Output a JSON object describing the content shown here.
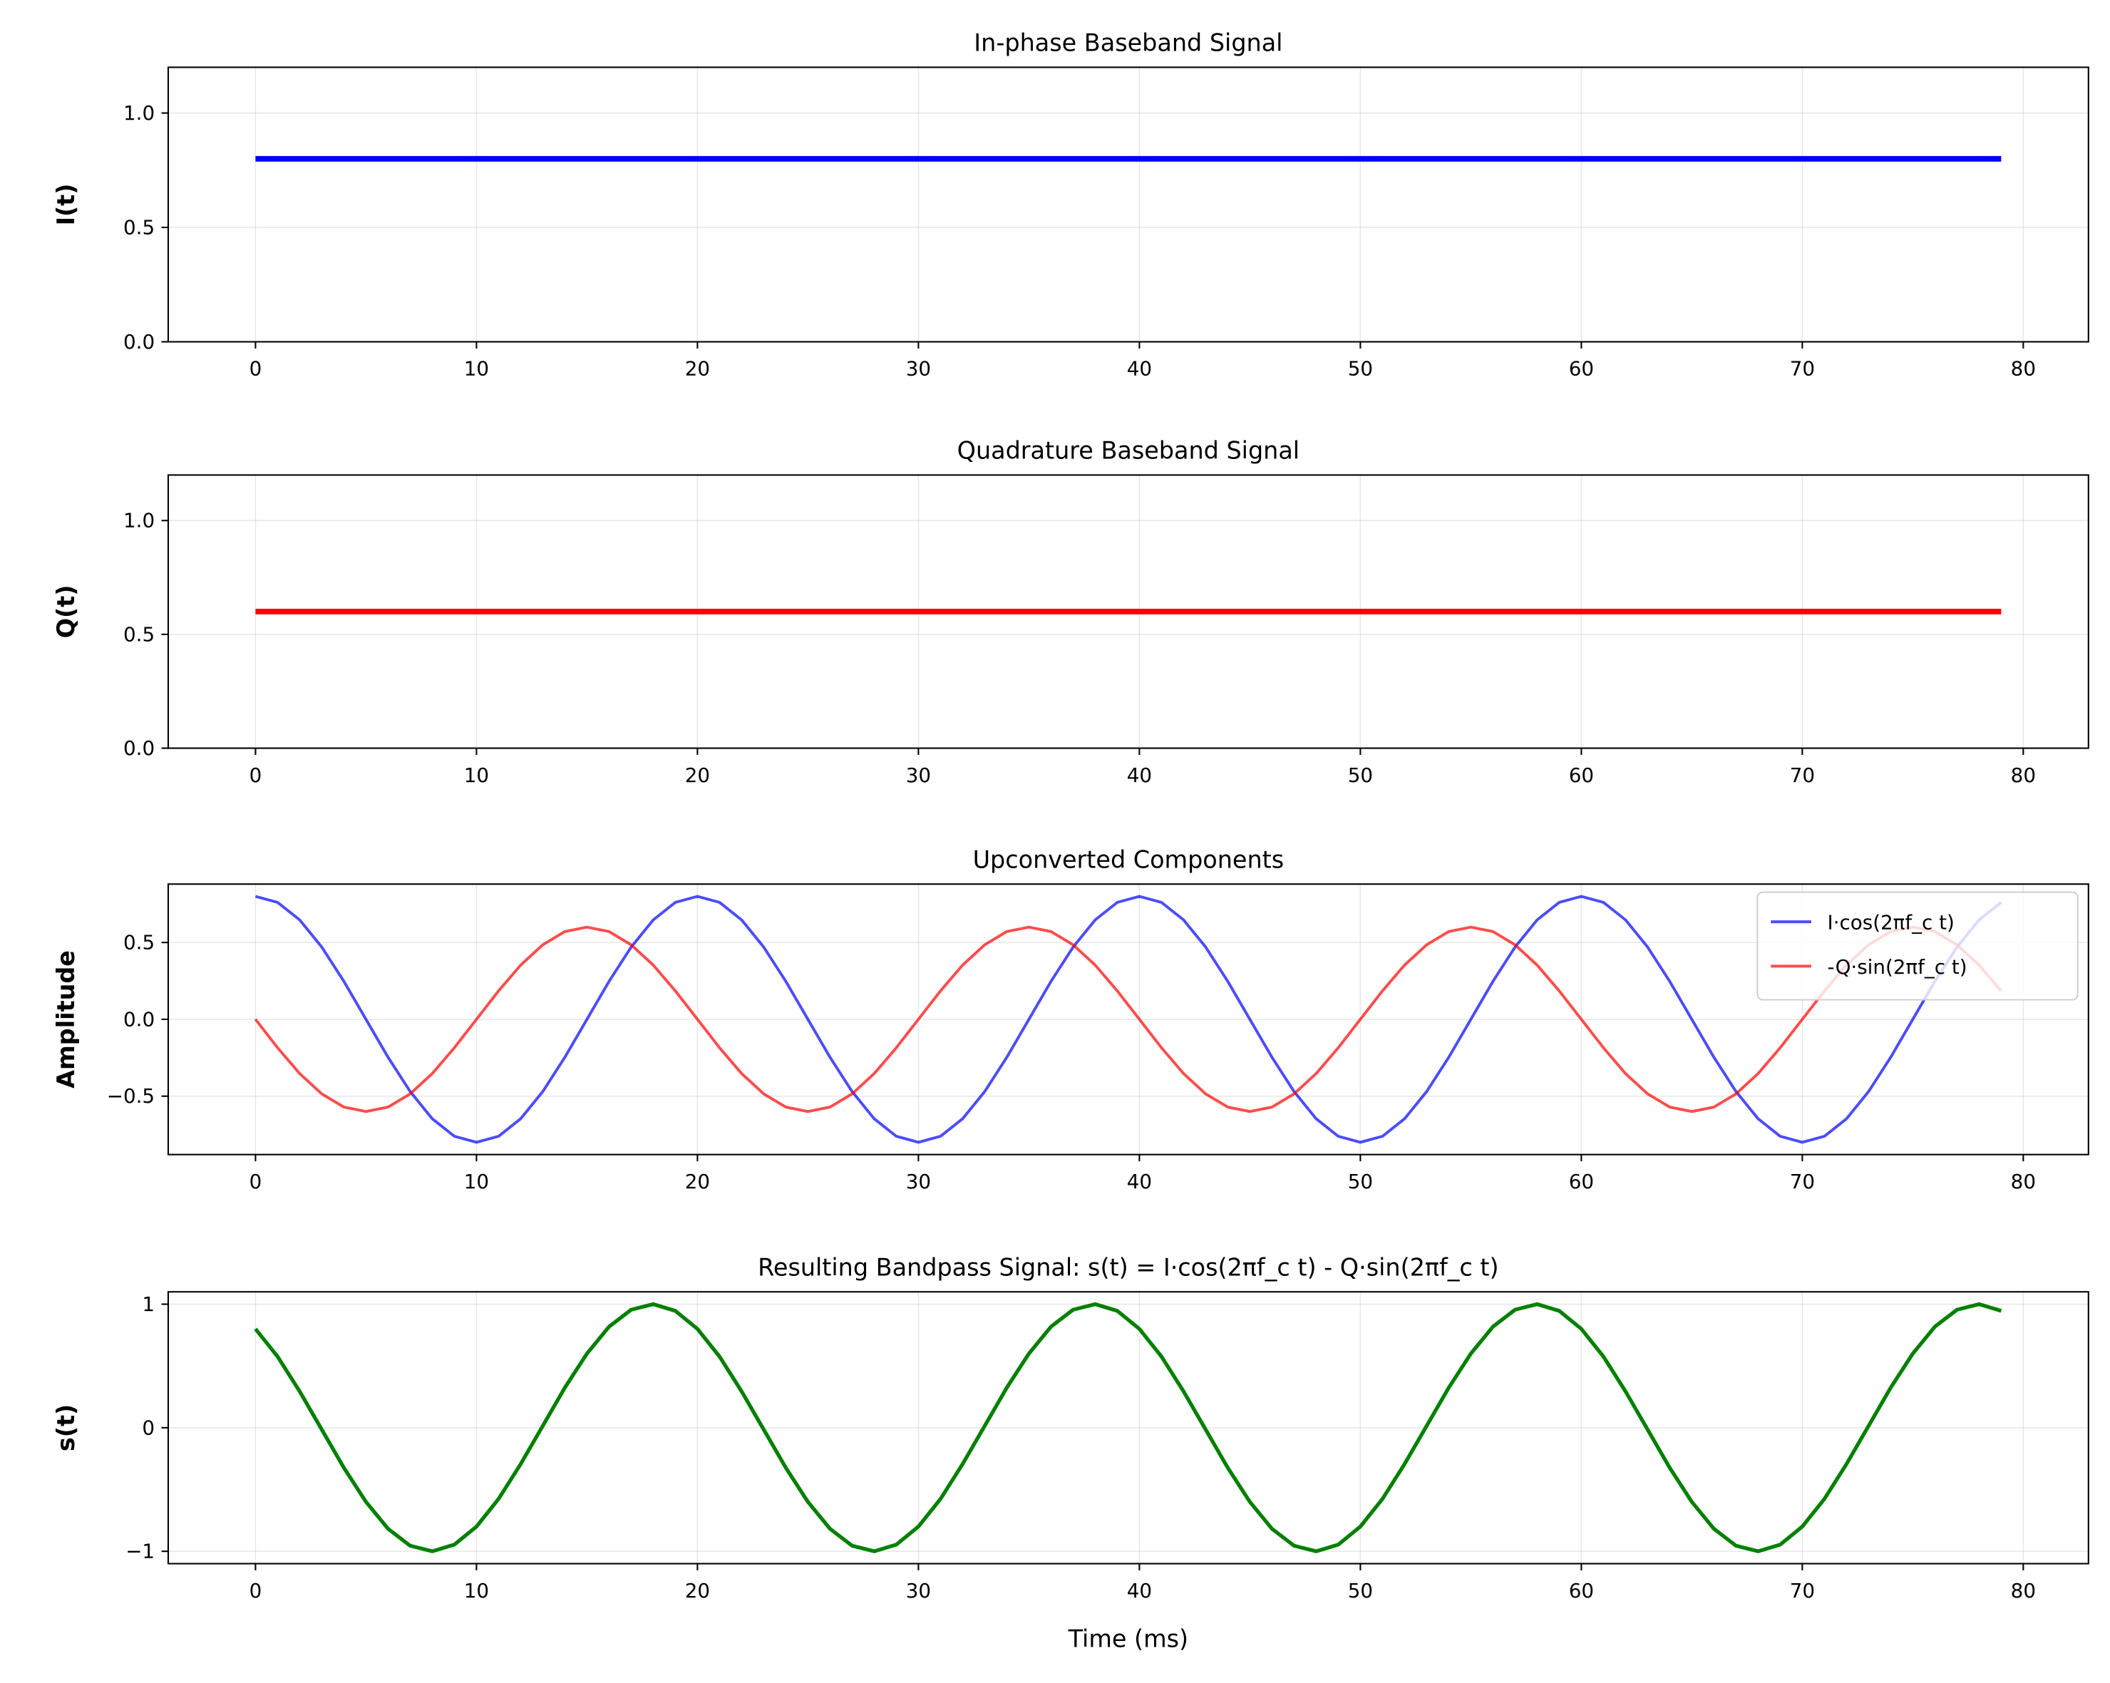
{
  "chart_data": [
    {
      "type": "line",
      "title": "In-phase Baseband Signal",
      "xlabel": "",
      "ylabel": "I(t)",
      "xlim": [
        -3.95,
        82.95
      ],
      "ylim": [
        0,
        1.2
      ],
      "xticks": [
        0,
        10,
        20,
        30,
        40,
        50,
        60,
        70,
        80
      ],
      "xtick_labels": [
        "0",
        "10",
        "20",
        "30",
        "40",
        "50",
        "60",
        "70",
        "80"
      ],
      "yticks": [
        0,
        0.5,
        1.0
      ],
      "ytick_labels": [
        "0.0",
        "0.5",
        "1.0"
      ],
      "grid": true,
      "series": [
        {
          "color": "#0000ff",
          "width": 3,
          "opacity": 1,
          "x_start": 0,
          "x_end": 79,
          "values": [
            0.8,
            0.8,
            0.8,
            0.8,
            0.8,
            0.8,
            0.8,
            0.8,
            0.8,
            0.8,
            0.8,
            0.8,
            0.8,
            0.8,
            0.8,
            0.8,
            0.8,
            0.8,
            0.8,
            0.8,
            0.8,
            0.8,
            0.8,
            0.8,
            0.8,
            0.8,
            0.8,
            0.8,
            0.8,
            0.8,
            0.8,
            0.8,
            0.8,
            0.8,
            0.8,
            0.8,
            0.8,
            0.8,
            0.8,
            0.8,
            0.8,
            0.8,
            0.8,
            0.8,
            0.8,
            0.8,
            0.8,
            0.8,
            0.8,
            0.8,
            0.8,
            0.8,
            0.8,
            0.8,
            0.8,
            0.8,
            0.8,
            0.8,
            0.8,
            0.8,
            0.8,
            0.8,
            0.8,
            0.8,
            0.8,
            0.8,
            0.8,
            0.8,
            0.8,
            0.8,
            0.8,
            0.8,
            0.8,
            0.8,
            0.8,
            0.8,
            0.8,
            0.8,
            0.8,
            0.8
          ]
        }
      ]
    },
    {
      "type": "line",
      "title": "Quadrature Baseband Signal",
      "xlabel": "",
      "ylabel": "Q(t)",
      "xlim": [
        -3.95,
        82.95
      ],
      "ylim": [
        0,
        1.2
      ],
      "xticks": [
        0,
        10,
        20,
        30,
        40,
        50,
        60,
        70,
        80
      ],
      "xtick_labels": [
        "0",
        "10",
        "20",
        "30",
        "40",
        "50",
        "60",
        "70",
        "80"
      ],
      "yticks": [
        0,
        0.5,
        1.0
      ],
      "ytick_labels": [
        "0.0",
        "0.5",
        "1.0"
      ],
      "grid": true,
      "series": [
        {
          "color": "#ff0000",
          "width": 3,
          "opacity": 1,
          "x_start": 0,
          "x_end": 79,
          "values": [
            0.6,
            0.6,
            0.6,
            0.6,
            0.6,
            0.6,
            0.6,
            0.6,
            0.6,
            0.6,
            0.6,
            0.6,
            0.6,
            0.6,
            0.6,
            0.6,
            0.6,
            0.6,
            0.6,
            0.6,
            0.6,
            0.6,
            0.6,
            0.6,
            0.6,
            0.6,
            0.6,
            0.6,
            0.6,
            0.6,
            0.6,
            0.6,
            0.6,
            0.6,
            0.6,
            0.6,
            0.6,
            0.6,
            0.6,
            0.6,
            0.6,
            0.6,
            0.6,
            0.6,
            0.6,
            0.6,
            0.6,
            0.6,
            0.6,
            0.6,
            0.6,
            0.6,
            0.6,
            0.6,
            0.6,
            0.6,
            0.6,
            0.6,
            0.6,
            0.6,
            0.6,
            0.6,
            0.6,
            0.6,
            0.6,
            0.6,
            0.6,
            0.6,
            0.6,
            0.6,
            0.6,
            0.6,
            0.6,
            0.6,
            0.6,
            0.6,
            0.6,
            0.6,
            0.6,
            0.6
          ]
        }
      ]
    },
    {
      "type": "line",
      "title": "Upconverted Components",
      "xlabel": "",
      "ylabel": "Amplitude",
      "xlim": [
        -3.95,
        82.95
      ],
      "ylim": [
        -0.88,
        0.88
      ],
      "xticks": [
        0,
        10,
        20,
        30,
        40,
        50,
        60,
        70,
        80
      ],
      "xtick_labels": [
        "0",
        "10",
        "20",
        "30",
        "40",
        "50",
        "60",
        "70",
        "80"
      ],
      "yticks": [
        -0.5,
        0,
        0.5
      ],
      "ytick_labels": [
        "−0.5",
        "0.0",
        "0.5"
      ],
      "grid": true,
      "legend": "top-right",
      "series": [
        {
          "name": "I·cos(2πf_c t)",
          "color": "#0000ff",
          "width": 1.5,
          "opacity": 0.7,
          "x_start": 0,
          "x_end": 79,
          "values": [
            0.8,
            0.761,
            0.647,
            0.47,
            0.247,
            0,
            -0.247,
            -0.47,
            -0.647,
            -0.761,
            -0.8,
            -0.761,
            -0.647,
            -0.47,
            -0.247,
            0,
            0.247,
            0.47,
            0.647,
            0.761,
            0.8,
            0.761,
            0.647,
            0.47,
            0.247,
            0,
            -0.247,
            -0.47,
            -0.647,
            -0.761,
            -0.8,
            -0.761,
            -0.647,
            -0.47,
            -0.247,
            0,
            0.247,
            0.47,
            0.647,
            0.761,
            0.8,
            0.761,
            0.647,
            0.47,
            0.247,
            0,
            -0.247,
            -0.47,
            -0.647,
            -0.761,
            -0.8,
            -0.761,
            -0.647,
            -0.47,
            -0.247,
            0,
            0.247,
            0.47,
            0.647,
            0.761,
            0.8,
            0.761,
            0.647,
            0.47,
            0.247,
            0,
            -0.247,
            -0.47,
            -0.647,
            -0.761,
            -0.8,
            -0.761,
            -0.647,
            -0.47,
            -0.247,
            0,
            0.247,
            0.47,
            0.647,
            0.761
          ]
        },
        {
          "name": "-Q·sin(2πf_c t)",
          "color": "#ff0000",
          "width": 1.5,
          "opacity": 0.7,
          "x_start": 0,
          "x_end": 79,
          "values": [
            0,
            -0.185,
            -0.353,
            -0.485,
            -0.571,
            -0.6,
            -0.571,
            -0.485,
            -0.353,
            -0.185,
            0,
            0.185,
            0.353,
            0.485,
            0.571,
            0.6,
            0.571,
            0.485,
            0.353,
            0.185,
            0,
            -0.185,
            -0.353,
            -0.485,
            -0.571,
            -0.6,
            -0.571,
            -0.485,
            -0.353,
            -0.185,
            0,
            0.185,
            0.353,
            0.485,
            0.571,
            0.6,
            0.571,
            0.485,
            0.353,
            0.185,
            0,
            -0.185,
            -0.353,
            -0.485,
            -0.571,
            -0.6,
            -0.571,
            -0.485,
            -0.353,
            -0.185,
            0,
            0.185,
            0.353,
            0.485,
            0.571,
            0.6,
            0.571,
            0.485,
            0.353,
            0.185,
            0,
            -0.185,
            -0.353,
            -0.485,
            -0.571,
            -0.6,
            -0.571,
            -0.485,
            -0.353,
            -0.185,
            0,
            0.185,
            0.353,
            0.485,
            0.571,
            0.6,
            0.571,
            0.485,
            0.353,
            0.185
          ]
        }
      ]
    },
    {
      "type": "line",
      "title": "Resulting Bandpass Signal: s(t) = I·cos(2πf_c t) - Q·sin(2πf_c t)",
      "xlabel": "Time (ms)",
      "ylabel": "s(t)",
      "xlim": [
        -3.95,
        82.95
      ],
      "ylim": [
        -1.1,
        1.1
      ],
      "xticks": [
        0,
        10,
        20,
        30,
        40,
        50,
        60,
        70,
        80
      ],
      "xtick_labels": [
        "0",
        "10",
        "20",
        "30",
        "40",
        "50",
        "60",
        "70",
        "80"
      ],
      "yticks": [
        -1,
        0,
        1
      ],
      "ytick_labels": [
        "−1",
        "0",
        "1"
      ],
      "grid": true,
      "series": [
        {
          "color": "#008000",
          "width": 2,
          "opacity": 1,
          "x_start": 0,
          "x_end": 79,
          "values": [
            0.8,
            0.576,
            0.294,
            -0.015,
            -0.324,
            -0.6,
            -0.818,
            -0.955,
            -1.0,
            -0.946,
            -0.8,
            -0.576,
            -0.294,
            0.015,
            0.324,
            0.6,
            0.818,
            0.955,
            1.0,
            0.946,
            0.8,
            0.576,
            0.294,
            -0.015,
            -0.324,
            -0.6,
            -0.818,
            -0.955,
            -1.0,
            -0.946,
            -0.8,
            -0.576,
            -0.294,
            0.015,
            0.324,
            0.6,
            0.818,
            0.955,
            1.0,
            0.946,
            0.8,
            0.576,
            0.294,
            -0.015,
            -0.324,
            -0.6,
            -0.818,
            -0.955,
            -1.0,
            -0.946,
            -0.8,
            -0.576,
            -0.294,
            0.015,
            0.324,
            0.6,
            0.818,
            0.955,
            1.0,
            0.946,
            0.8,
            0.576,
            0.294,
            -0.015,
            -0.324,
            -0.6,
            -0.818,
            -0.955,
            -1.0,
            -0.946,
            -0.8,
            -0.576,
            -0.294,
            0.015,
            0.324,
            0.6,
            0.818,
            0.955,
            1.0,
            0.946
          ]
        }
      ]
    }
  ]
}
